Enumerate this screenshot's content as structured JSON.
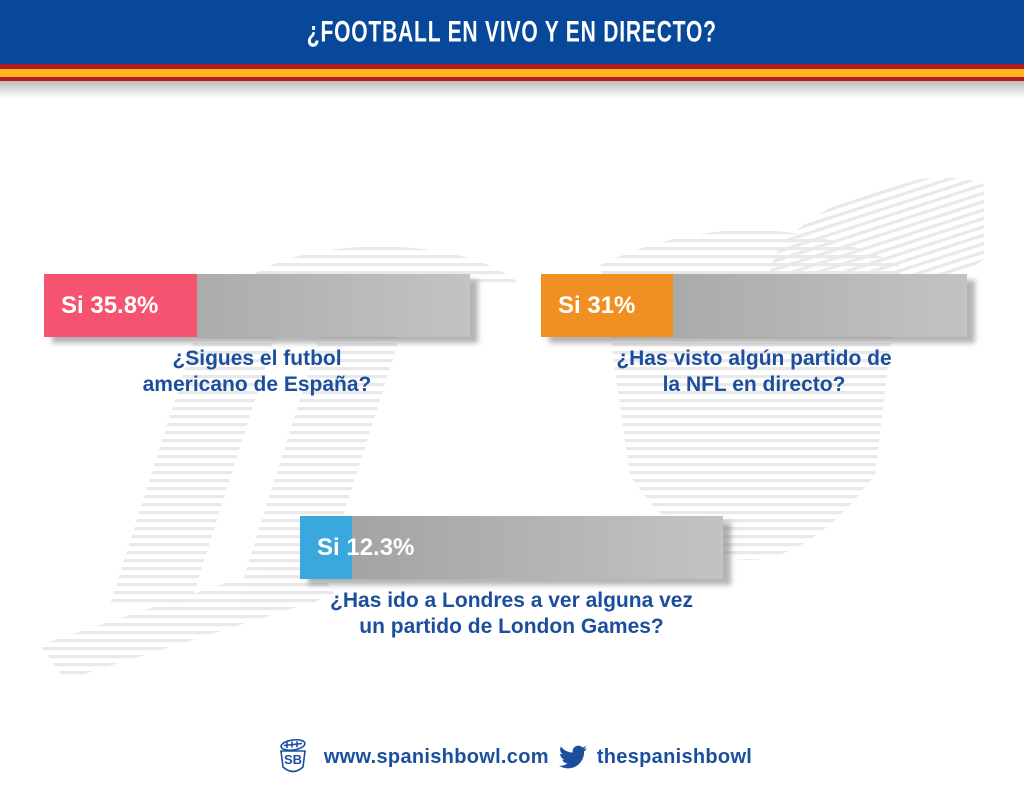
{
  "header": {
    "title": "¿FOOTBALL EN VIVO Y EN DIRECTO?"
  },
  "colors": {
    "header_blue": "#07489a",
    "flag_red": "#b01b23",
    "flag_yellow": "#fdb71a",
    "text_blue": "#1b4f9e",
    "bar_track_gray": "#b5b5b5",
    "bar_pink": "#f5536f",
    "bar_orange": "#f19022",
    "bar_light_blue": "#3aa8dc"
  },
  "chart_data": {
    "type": "bar",
    "orientation": "horizontal",
    "unit": "%",
    "xlim": [
      0,
      100
    ],
    "title": "¿FOOTBALL EN VIVO Y EN DIRECTO?",
    "series": [
      {
        "question": "¿Sigues el futbol americano de España?",
        "answer": "Si",
        "value": 35.8,
        "label": "Si 35.8%",
        "color": "#f5536f"
      },
      {
        "question": "¿Has visto algún partido de la NFL en directo?",
        "answer": "Si",
        "value": 31,
        "label": "Si 31%",
        "color": "#f19022"
      },
      {
        "question": "¿Has ido a Londres a ver alguna vez un partido de London Games?",
        "answer": "Si",
        "value": 12.3,
        "label": "Si 12.3%",
        "color": "#3aa8dc"
      }
    ]
  },
  "bars": [
    {
      "label": "Si 35.8%",
      "caption_line1": "¿Sigues el futbol",
      "caption_line2": "americano de España?"
    },
    {
      "label": "Si 31%",
      "caption_line1": "¿Has visto algún partido de",
      "caption_line2": "la NFL en directo?"
    },
    {
      "label": "Si 12.3%",
      "caption_line1": "¿Has ido a Londres a ver alguna vez",
      "caption_line2": "un partido de London Games?"
    }
  ],
  "footer": {
    "logo_text": "SB",
    "website": "www.spanishbowl.com",
    "twitter_handle": "thespanishbowl"
  }
}
